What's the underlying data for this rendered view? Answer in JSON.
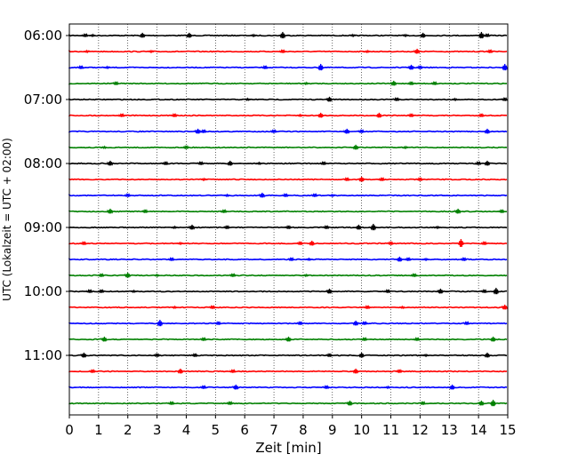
{
  "chart_data": {
    "type": "line",
    "title": "",
    "xlabel": "Zeit  [min]",
    "ylabel": "UTC (Lokalzeit = UTC + 02:00)",
    "xlim": [
      0,
      15
    ],
    "xticks": [
      0,
      1,
      2,
      3,
      4,
      5,
      6,
      7,
      8,
      9,
      10,
      11,
      12,
      13,
      14,
      15
    ],
    "yticks": [
      "06:00",
      "07:00",
      "08:00",
      "09:00",
      "10:00",
      "11:00"
    ],
    "trace_start_utc": "06:00",
    "trace_interval_min": 15,
    "colors_cycle": [
      "#000000",
      "#ff0000",
      "#0000ff",
      "#008000"
    ],
    "grid": {
      "x": "dotted",
      "y": "off"
    },
    "series": [
      {
        "start": "06:00",
        "color": "#000000",
        "events": [
          [
            0.55,
            2
          ],
          [
            0.8,
            1
          ],
          [
            2.5,
            3
          ],
          [
            4.1,
            3
          ],
          [
            6.3,
            1
          ],
          [
            7.3,
            4
          ],
          [
            9.7,
            1
          ],
          [
            11.5,
            1
          ],
          [
            12.1,
            3
          ],
          [
            14.1,
            4
          ],
          [
            14.3,
            2
          ]
        ]
      },
      {
        "start": "06:15",
        "color": "#ff0000",
        "events": [
          [
            0.6,
            1
          ],
          [
            2.8,
            1
          ],
          [
            7.3,
            2
          ],
          [
            10.2,
            1
          ],
          [
            11.9,
            3
          ],
          [
            14.4,
            2
          ]
        ]
      },
      {
        "start": "06:30",
        "color": "#0000ff",
        "events": [
          [
            0.4,
            2
          ],
          [
            1.3,
            1
          ],
          [
            6.7,
            2
          ],
          [
            8.6,
            4
          ],
          [
            11.7,
            3
          ],
          [
            12.0,
            2
          ],
          [
            14.9,
            4
          ]
        ]
      },
      {
        "start": "06:45",
        "color": "#008000",
        "events": [
          [
            1.6,
            2
          ],
          [
            8.1,
            1
          ],
          [
            11.1,
            3
          ],
          [
            11.7,
            2
          ],
          [
            12.5,
            2
          ]
        ]
      },
      {
        "start": "07:00",
        "color": "#000000",
        "events": [
          [
            6.1,
            1
          ],
          [
            8.9,
            3
          ],
          [
            11.2,
            2
          ],
          [
            13.2,
            1
          ],
          [
            14.9,
            2
          ]
        ]
      },
      {
        "start": "07:15",
        "color": "#ff0000",
        "events": [
          [
            1.8,
            2
          ],
          [
            3.6,
            2
          ],
          [
            7.9,
            1
          ],
          [
            8.6,
            3
          ],
          [
            10.6,
            3
          ],
          [
            11.7,
            2
          ],
          [
            14.1,
            2
          ]
        ]
      },
      {
        "start": "07:30",
        "color": "#0000ff",
        "events": [
          [
            4.4,
            3
          ],
          [
            4.6,
            2
          ],
          [
            7.0,
            2
          ],
          [
            9.5,
            3
          ],
          [
            10.0,
            2
          ],
          [
            14.3,
            3
          ]
        ]
      },
      {
        "start": "07:45",
        "color": "#008000",
        "events": [
          [
            1.2,
            1
          ],
          [
            4.0,
            2
          ],
          [
            9.8,
            3
          ],
          [
            11.5,
            1
          ]
        ]
      },
      {
        "start": "08:00",
        "color": "#000000",
        "events": [
          [
            1.4,
            3
          ],
          [
            3.3,
            2
          ],
          [
            4.5,
            2
          ],
          [
            5.5,
            3
          ],
          [
            6.5,
            1
          ],
          [
            8.7,
            2
          ],
          [
            14.0,
            2
          ],
          [
            14.3,
            3
          ]
        ]
      },
      {
        "start": "08:15",
        "color": "#ff0000",
        "events": [
          [
            4.6,
            1
          ],
          [
            9.5,
            2
          ],
          [
            10.0,
            3
          ],
          [
            10.7,
            2
          ],
          [
            12.0,
            2
          ]
        ]
      },
      {
        "start": "08:30",
        "color": "#0000ff",
        "events": [
          [
            2.0,
            2
          ],
          [
            5.4,
            1
          ],
          [
            6.6,
            3
          ],
          [
            7.4,
            2
          ],
          [
            8.4,
            2
          ],
          [
            9.0,
            1
          ]
        ]
      },
      {
        "start": "08:45",
        "color": "#008000",
        "events": [
          [
            1.4,
            3
          ],
          [
            2.6,
            2
          ],
          [
            5.3,
            2
          ],
          [
            13.3,
            3
          ],
          [
            14.8,
            2
          ]
        ]
      },
      {
        "start": "09:00",
        "color": "#000000",
        "events": [
          [
            3.6,
            1
          ],
          [
            4.2,
            3
          ],
          [
            5.4,
            2
          ],
          [
            7.5,
            2
          ],
          [
            8.8,
            2
          ],
          [
            9.9,
            3
          ],
          [
            10.4,
            4
          ],
          [
            12.6,
            1
          ]
        ]
      },
      {
        "start": "09:15",
        "color": "#ff0000",
        "events": [
          [
            0.5,
            2
          ],
          [
            3.8,
            1
          ],
          [
            7.9,
            2
          ],
          [
            8.3,
            3
          ],
          [
            11.0,
            2
          ],
          [
            13.4,
            5
          ],
          [
            14.2,
            2
          ]
        ]
      },
      {
        "start": "09:30",
        "color": "#0000ff",
        "events": [
          [
            3.5,
            2
          ],
          [
            7.6,
            2
          ],
          [
            8.2,
            1
          ],
          [
            11.3,
            3
          ],
          [
            11.6,
            2
          ],
          [
            12.2,
            1
          ],
          [
            13.5,
            2
          ]
        ]
      },
      {
        "start": "09:45",
        "color": "#008000",
        "events": [
          [
            1.1,
            2
          ],
          [
            2.0,
            3
          ],
          [
            3.0,
            1
          ],
          [
            5.6,
            2
          ],
          [
            8.1,
            1
          ],
          [
            11.8,
            2
          ]
        ]
      },
      {
        "start": "10:00",
        "color": "#000000",
        "events": [
          [
            0.7,
            2
          ],
          [
            1.1,
            2
          ],
          [
            2.2,
            1
          ],
          [
            8.9,
            3
          ],
          [
            10.9,
            2
          ],
          [
            12.7,
            3
          ],
          [
            14.2,
            2
          ],
          [
            14.6,
            4
          ]
        ]
      },
      {
        "start": "10:15",
        "color": "#ff0000",
        "events": [
          [
            3.6,
            1
          ],
          [
            4.9,
            2
          ],
          [
            10.2,
            2
          ],
          [
            11.4,
            1
          ],
          [
            14.9,
            3
          ]
        ]
      },
      {
        "start": "10:30",
        "color": "#0000ff",
        "events": [
          [
            3.1,
            4
          ],
          [
            5.1,
            2
          ],
          [
            7.9,
            2
          ],
          [
            9.8,
            3
          ],
          [
            10.1,
            2
          ],
          [
            13.6,
            2
          ]
        ]
      },
      {
        "start": "10:45",
        "color": "#008000",
        "events": [
          [
            1.2,
            3
          ],
          [
            4.6,
            2
          ],
          [
            7.5,
            3
          ],
          [
            10.1,
            2
          ],
          [
            11.9,
            2
          ],
          [
            14.5,
            3
          ]
        ]
      },
      {
        "start": "11:00",
        "color": "#000000",
        "events": [
          [
            0.5,
            3
          ],
          [
            3.0,
            2
          ],
          [
            4.3,
            2
          ],
          [
            8.9,
            2
          ],
          [
            10.0,
            3
          ],
          [
            12.2,
            1
          ],
          [
            14.3,
            3
          ]
        ]
      },
      {
        "start": "11:15",
        "color": "#ff0000",
        "events": [
          [
            0.8,
            2
          ],
          [
            3.8,
            3
          ],
          [
            5.6,
            2
          ],
          [
            9.8,
            3
          ],
          [
            11.3,
            2
          ]
        ]
      },
      {
        "start": "11:30",
        "color": "#0000ff",
        "events": [
          [
            4.6,
            2
          ],
          [
            5.7,
            3
          ],
          [
            8.8,
            2
          ],
          [
            10.9,
            1
          ],
          [
            13.1,
            3
          ]
        ]
      },
      {
        "start": "11:45",
        "color": "#008000",
        "events": [
          [
            3.5,
            2
          ],
          [
            5.5,
            2
          ],
          [
            9.6,
            3
          ],
          [
            12.1,
            2
          ],
          [
            14.1,
            3
          ],
          [
            14.5,
            4
          ]
        ]
      }
    ]
  }
}
